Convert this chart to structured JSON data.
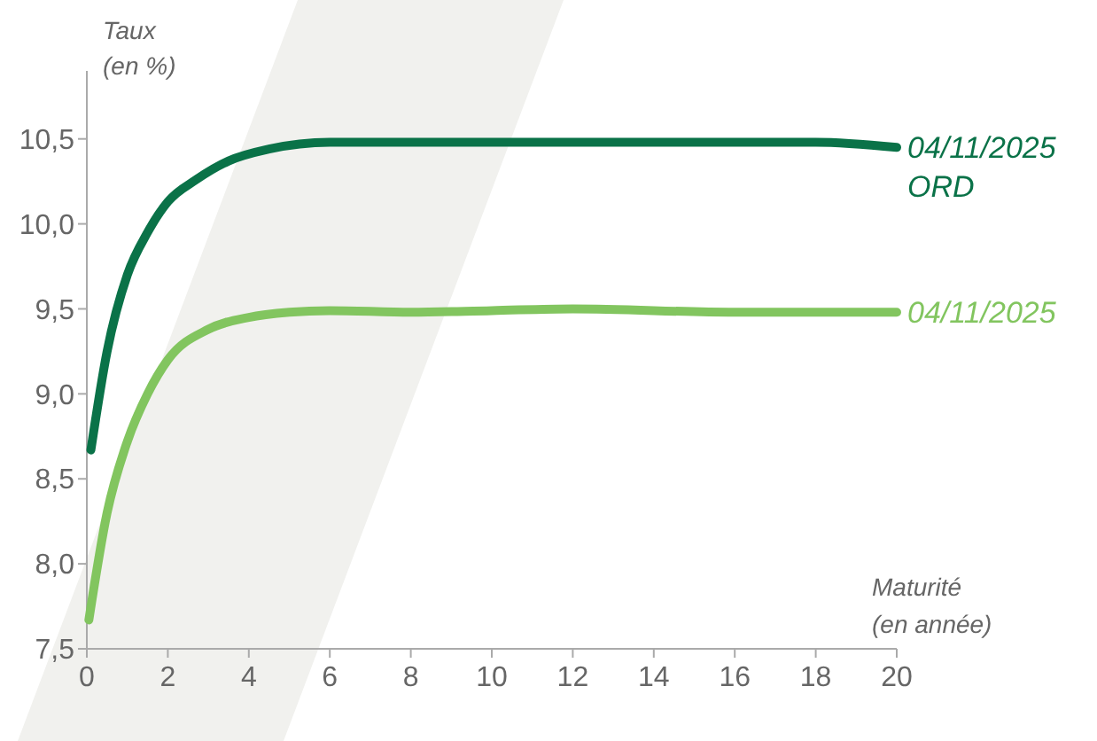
{
  "chart_data": {
    "type": "line",
    "xlabel": "Maturité (en année)",
    "ylabel": "Taux (en %)",
    "xlim": [
      0,
      20
    ],
    "xticks": [
      0,
      2,
      4,
      6,
      8,
      10,
      12,
      14,
      16,
      18,
      20
    ],
    "ylim": [
      7.5,
      10.9
    ],
    "yticks": [
      {
        "value": 7.5,
        "label": "7,5"
      },
      {
        "value": 8,
        "label": "8,0"
      },
      {
        "value": 8.5,
        "label": "8,5"
      },
      {
        "value": 9,
        "label": "9,0"
      },
      {
        "value": 9.5,
        "label": "9,5"
      },
      {
        "value": 10,
        "label": "10,0"
      },
      {
        "value": 10.5,
        "label": "10,5"
      }
    ],
    "grid": false,
    "marker": "none",
    "line_style": "solid",
    "series": [
      {
        "name": "04/11/2025 ORD",
        "color": "#0a7248",
        "x": [
          0.1,
          0.5,
          1,
          1.5,
          2,
          2.7,
          3.5,
          4.5,
          6,
          9,
          18,
          20
        ],
        "values": [
          8.67,
          9.25,
          9.7,
          9.95,
          10.13,
          10.26,
          10.37,
          10.44,
          10.48,
          10.48,
          10.48,
          10.45
        ]
      },
      {
        "name": "04/11/2025",
        "color": "#82c55f",
        "x": [
          0.05,
          0.5,
          1,
          1.5,
          2,
          3,
          4,
          5,
          6,
          8,
          10,
          12,
          16,
          20
        ],
        "values": [
          7.67,
          8.3,
          8.72,
          9.0,
          9.2,
          9.38,
          9.45,
          9.48,
          9.49,
          9.48,
          9.49,
          9.5,
          9.48,
          9.48
        ]
      }
    ]
  }
}
